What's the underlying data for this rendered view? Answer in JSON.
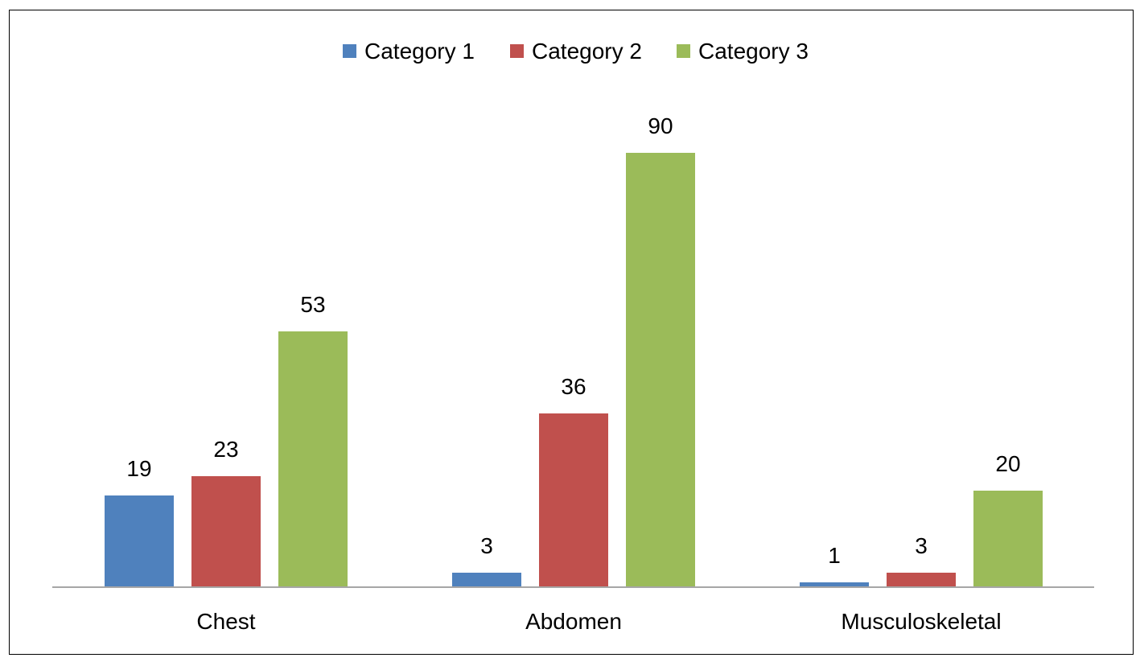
{
  "chart_data": {
    "type": "bar",
    "categories": [
      "Chest",
      "Abdomen",
      "Musculoskeletal"
    ],
    "series": [
      {
        "name": "Category 1",
        "values": [
          19,
          3,
          1
        ],
        "color": "#4F81BD"
      },
      {
        "name": "Category 2",
        "values": [
          23,
          36,
          3
        ],
        "color": "#C0504D"
      },
      {
        "name": "Category 3",
        "values": [
          53,
          90,
          20
        ],
        "color": "#9BBB59"
      }
    ],
    "ylim": [
      0,
      90
    ],
    "legend": "top-center",
    "grid": false,
    "title": "",
    "xlabel": "",
    "ylabel": ""
  }
}
